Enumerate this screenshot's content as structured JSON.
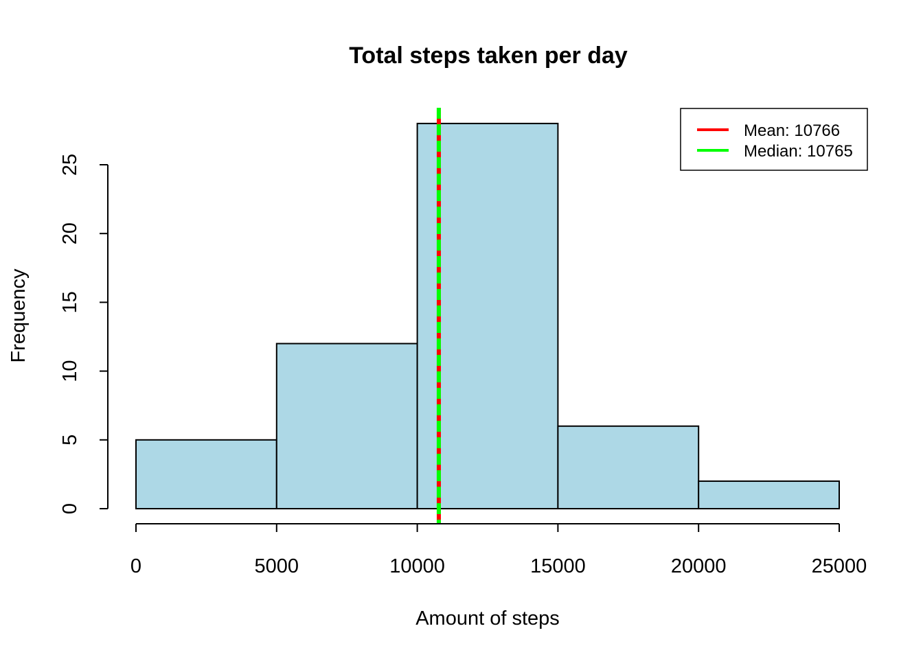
{
  "chart_data": {
    "type": "histogram",
    "title": "Total steps taken per day",
    "xlabel": "Amount of steps",
    "ylabel": "Frequency",
    "bins": [
      {
        "from": 0,
        "to": 5000,
        "count": 5
      },
      {
        "from": 5000,
        "to": 10000,
        "count": 12
      },
      {
        "from": 10000,
        "to": 15000,
        "count": 28
      },
      {
        "from": 15000,
        "to": 20000,
        "count": 6
      },
      {
        "from": 20000,
        "to": 25000,
        "count": 2
      }
    ],
    "xlim": [
      0,
      25000
    ],
    "ylim": [
      0,
      28
    ],
    "x_ticks": [
      0,
      5000,
      10000,
      15000,
      20000,
      25000
    ],
    "x_tick_labels": [
      "0",
      "5000",
      "10000",
      "15000",
      "20000",
      "25000"
    ],
    "y_ticks": [
      0,
      5,
      10,
      15,
      20,
      25
    ],
    "y_tick_labels": [
      "0",
      "5",
      "10",
      "15",
      "20",
      "25"
    ],
    "bar_color": "#add8e6",
    "bar_border_color": "#000000",
    "grid": false,
    "reference_lines": [
      {
        "name": "Mean",
        "value": 10766,
        "color": "#ff0000",
        "style": "solid"
      },
      {
        "name": "Median",
        "value": 10765,
        "color": "#00ff00",
        "style": "dashed"
      }
    ],
    "legend": {
      "position": "top-right",
      "entries": [
        "Mean: 10766",
        "Median: 10765"
      ]
    }
  }
}
